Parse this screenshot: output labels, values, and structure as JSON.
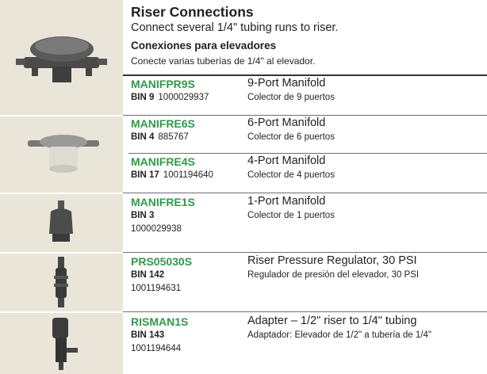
{
  "header": {
    "title": "Riser Connections",
    "subtitle": "Connect several 1/4\" tubing runs to riser.",
    "title_es": "Conexiones para elevadores",
    "subtitle_es": "Conecte varias tuberías de 1/4\" al elevador."
  },
  "products": [
    {
      "code": "MANIFPR9S",
      "name": "9-Port Manifold",
      "bin": "BIN 9",
      "number": "1000029937",
      "name_es": "Colector de 9 puertos"
    },
    {
      "code": "MANIFRE6S",
      "name": "6-Port Manifold",
      "bin": "BIN 4",
      "number": "885767",
      "name_es": "Colector de 6 puertos"
    },
    {
      "code": "MANIFRE4S",
      "name": "4-Port Manifold",
      "bin": "BIN 17",
      "number": "1001194640",
      "name_es": "Colector de 4 puertos"
    },
    {
      "code": "MANIFRE1S",
      "name": "1-Port Manifold",
      "bin": "BIN 3",
      "number": "1000029938",
      "name_es": "Colector de 1 puertos"
    },
    {
      "code": "PRS05030S",
      "name": "Riser Pressure Regulator, 30 PSI",
      "bin": "BIN 142",
      "number": "1001194631",
      "name_es": "Regulador de presión del elevador, 30 PSI"
    },
    {
      "code": "RISMAN1S",
      "name": "Adapter – 1/2\" riser to 1/4\" tubing",
      "bin": "BIN 143",
      "number": "1001194644",
      "name_es": "Adaptador: Elevador de 1/2\" a tubería de 1/4\""
    }
  ]
}
